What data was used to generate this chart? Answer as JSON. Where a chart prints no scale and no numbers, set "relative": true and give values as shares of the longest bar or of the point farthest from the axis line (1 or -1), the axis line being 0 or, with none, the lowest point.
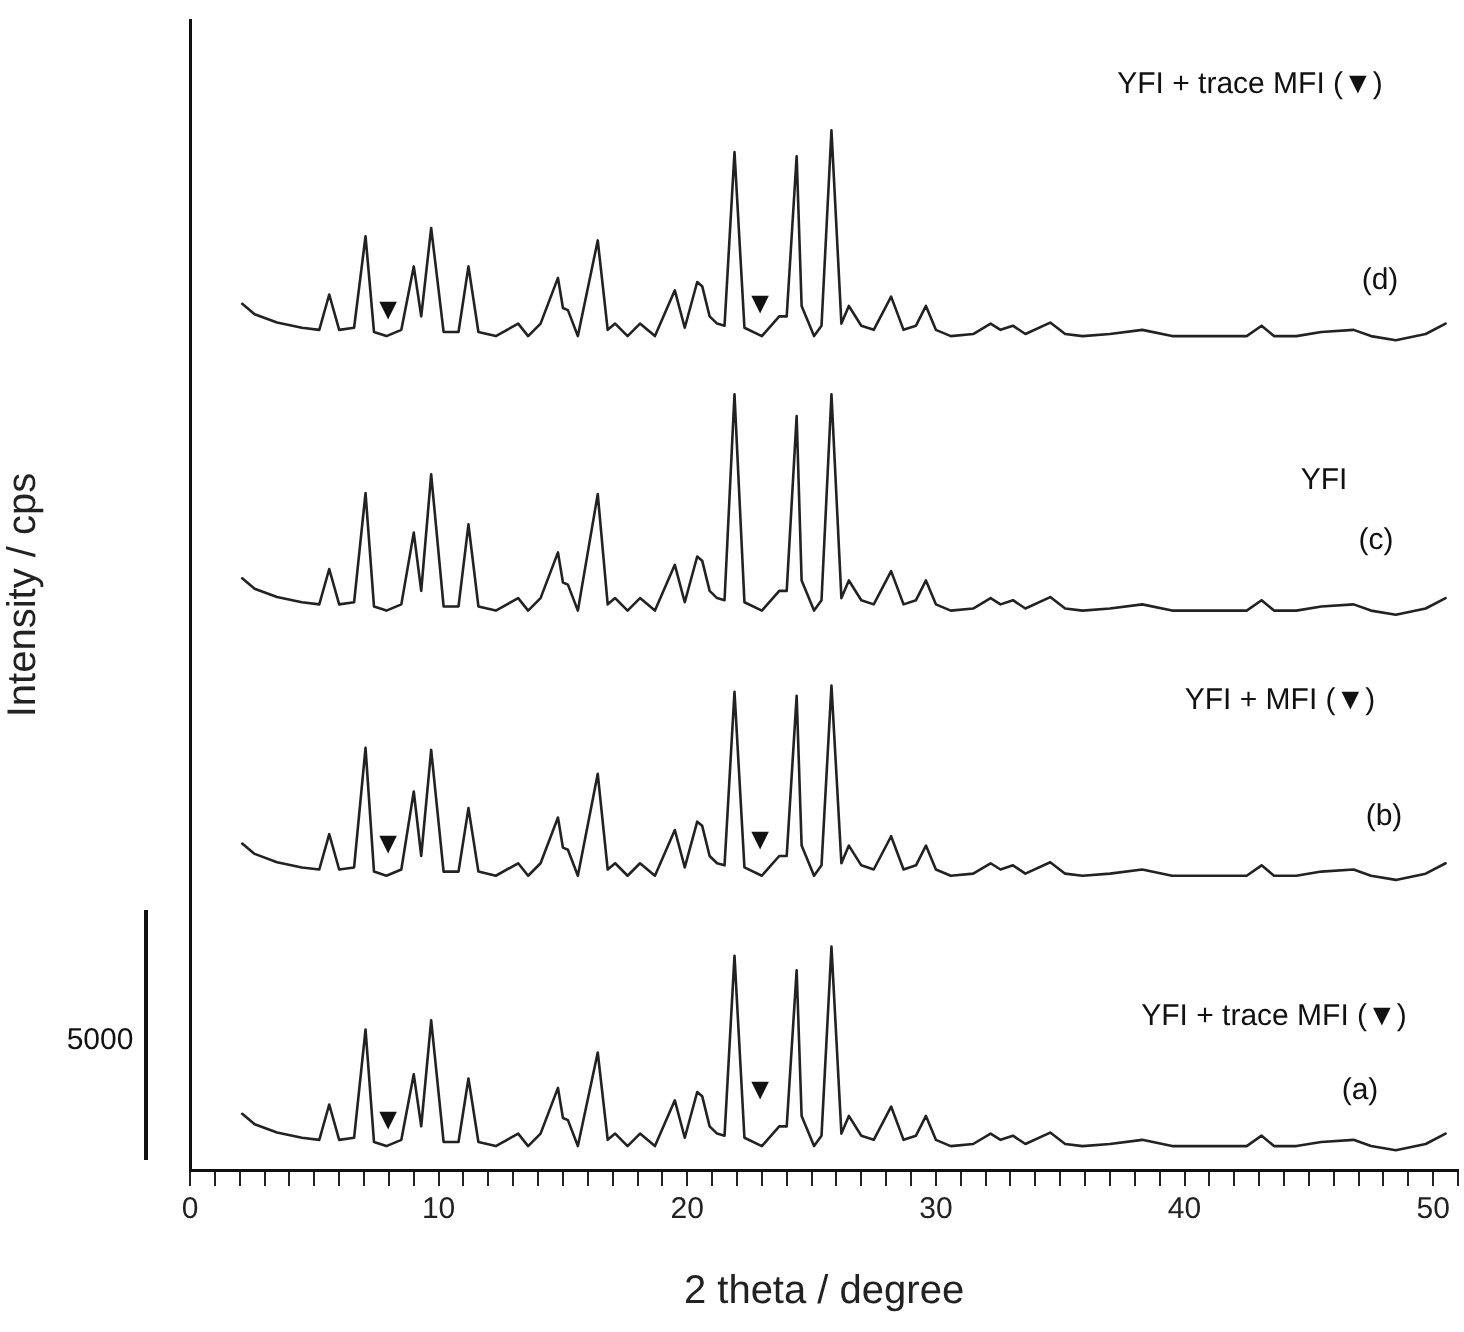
{
  "chart_data": {
    "type": "line",
    "relative": true,
    "xlabel": "2 theta / degree",
    "ylabel": "Intensity / cps",
    "xlim": [
      0,
      51
    ],
    "xticks": [
      0,
      {
        "value": 1,
        "label": null
      },
      {
        "value": 2,
        "label": null
      },
      {
        "value": 3,
        "label": null
      },
      {
        "value": 4,
        "label": null
      },
      {
        "value": 5,
        "label": null
      },
      {
        "value": 6,
        "label": null
      },
      {
        "value": 7,
        "label": null
      },
      {
        "value": 8,
        "label": null
      },
      {
        "value": 9,
        "label": null
      },
      10,
      {
        "value": 11,
        "label": null
      },
      {
        "value": 12,
        "label": null
      },
      {
        "value": 13,
        "label": null
      },
      {
        "value": 14,
        "label": null
      },
      {
        "value": 15,
        "label": null
      },
      {
        "value": 16,
        "label": null
      },
      {
        "value": 17,
        "label": null
      },
      {
        "value": 18,
        "label": null
      },
      {
        "value": 19,
        "label": null
      },
      20,
      {
        "value": 21,
        "label": null
      },
      {
        "value": 22,
        "label": null
      },
      {
        "value": 23,
        "label": null
      },
      {
        "value": 24,
        "label": null
      },
      {
        "value": 25,
        "label": null
      },
      {
        "value": 26,
        "label": null
      },
      {
        "value": 27,
        "label": null
      },
      {
        "value": 28,
        "label": null
      },
      {
        "value": 29,
        "label": null
      },
      30,
      {
        "value": 31,
        "label": null
      },
      {
        "value": 32,
        "label": null
      },
      {
        "value": 33,
        "label": null
      },
      {
        "value": 34,
        "label": null
      },
      {
        "value": 35,
        "label": null
      },
      {
        "value": 36,
        "label": null
      },
      {
        "value": 37,
        "label": null
      },
      {
        "value": 38,
        "label": null
      },
      {
        "value": 39,
        "label": null
      },
      40,
      {
        "value": 41,
        "label": null
      },
      {
        "value": 42,
        "label": null
      },
      {
        "value": 43,
        "label": null
      },
      {
        "value": 44,
        "label": null
      },
      {
        "value": 45,
        "label": null
      },
      {
        "value": 46,
        "label": null
      },
      {
        "value": 47,
        "label": null
      },
      {
        "value": 48,
        "label": null
      },
      {
        "value": 49,
        "label": null
      },
      50,
      {
        "value": 51,
        "label": null
      }
    ],
    "x": [
      2.1,
      2.6,
      3.5,
      4.5,
      5.2,
      5.6,
      6.0,
      6.6,
      7.06,
      7.4,
      7.9,
      8.5,
      9.0,
      9.3,
      9.7,
      10.2,
      10.8,
      11.2,
      11.6,
      12.3,
      13.2,
      13.6,
      14.1,
      14.8,
      15.0,
      15.2,
      15.6,
      16.4,
      16.8,
      17.1,
      17.6,
      18.1,
      18.7,
      19.5,
      19.9,
      20.4,
      20.6,
      20.9,
      21.2,
      21.5,
      21.9,
      22.3,
      23.0,
      23.7,
      24.0,
      24.4,
      24.6,
      25.1,
      25.4,
      25.8,
      26.2,
      26.5,
      27.0,
      27.5,
      28.2,
      28.7,
      29.2,
      29.6,
      30.0,
      30.6,
      31.5,
      32.2,
      32.6,
      33.1,
      33.6,
      34.6,
      35.2,
      35.9,
      37.0,
      38.3,
      39.5,
      41.3,
      42.5,
      43.1,
      43.6,
      44.5,
      45.5,
      46.8,
      47.5,
      48.5,
      49.7,
      50.5
    ],
    "series": [
      {
        "color": "#222222",
        "values": [
          0.054,
          0.044,
          0.036,
          0.031,
          0.029,
          0.063,
          0.029,
          0.031,
          0.135,
          0.027,
          0.023,
          0.029,
          0.092,
          0.042,
          0.144,
          0.027,
          0.027,
          0.088,
          0.027,
          0.023,
          0.035,
          0.023,
          0.035,
          0.079,
          0.05,
          0.048,
          0.023,
          0.113,
          0.029,
          0.035,
          0.023,
          0.035,
          0.023,
          0.067,
          0.031,
          0.075,
          0.071,
          0.042,
          0.035,
          0.033,
          0.206,
          0.031,
          0.023,
          0.042,
          0.042,
          0.192,
          0.052,
          0.023,
          0.033,
          0.215,
          0.035,
          0.052,
          0.033,
          0.029,
          0.061,
          0.029,
          0.033,
          0.052,
          0.029,
          0.023,
          0.025,
          0.035,
          0.029,
          0.033,
          0.025,
          0.036,
          0.025,
          0.023,
          0.025,
          0.029,
          0.023,
          0.023,
          0.023,
          0.033,
          0.023,
          0.023,
          0.027,
          0.029,
          0.023,
          0.019,
          0.025,
          0.035
        ]
      },
      {
        "color": "#222222",
        "values": [
          0.314,
          0.304,
          0.296,
          0.291,
          0.289,
          0.323,
          0.289,
          0.291,
          0.406,
          0.287,
          0.283,
          0.289,
          0.364,
          0.302,
          0.404,
          0.287,
          0.287,
          0.348,
          0.287,
          0.283,
          0.295,
          0.283,
          0.295,
          0.339,
          0.31,
          0.308,
          0.283,
          0.381,
          0.289,
          0.295,
          0.283,
          0.295,
          0.283,
          0.327,
          0.291,
          0.335,
          0.331,
          0.302,
          0.295,
          0.293,
          0.46,
          0.291,
          0.283,
          0.302,
          0.302,
          0.456,
          0.312,
          0.283,
          0.293,
          0.466,
          0.295,
          0.312,
          0.293,
          0.289,
          0.321,
          0.289,
          0.293,
          0.312,
          0.289,
          0.283,
          0.285,
          0.295,
          0.289,
          0.293,
          0.285,
          0.296,
          0.285,
          0.283,
          0.285,
          0.289,
          0.283,
          0.283,
          0.283,
          0.293,
          0.283,
          0.283,
          0.287,
          0.289,
          0.283,
          0.279,
          0.285,
          0.295
        ]
      },
      {
        "color": "#222222",
        "values": [
          0.569,
          0.559,
          0.551,
          0.546,
          0.544,
          0.578,
          0.544,
          0.546,
          0.651,
          0.542,
          0.538,
          0.544,
          0.613,
          0.557,
          0.669,
          0.542,
          0.542,
          0.621,
          0.542,
          0.538,
          0.55,
          0.538,
          0.55,
          0.594,
          0.565,
          0.563,
          0.538,
          0.65,
          0.544,
          0.55,
          0.538,
          0.55,
          0.538,
          0.582,
          0.546,
          0.59,
          0.586,
          0.557,
          0.55,
          0.548,
          0.746,
          0.546,
          0.538,
          0.557,
          0.557,
          0.725,
          0.567,
          0.538,
          0.548,
          0.746,
          0.55,
          0.567,
          0.548,
          0.544,
          0.576,
          0.544,
          0.548,
          0.567,
          0.544,
          0.538,
          0.54,
          0.55,
          0.544,
          0.548,
          0.54,
          0.551,
          0.54,
          0.538,
          0.54,
          0.544,
          0.538,
          0.538,
          0.538,
          0.548,
          0.538,
          0.538,
          0.542,
          0.544,
          0.538,
          0.534,
          0.54,
          0.55
        ]
      },
      {
        "color": "#222222",
        "values": [
          0.833,
          0.823,
          0.815,
          0.81,
          0.808,
          0.842,
          0.808,
          0.81,
          0.898,
          0.806,
          0.802,
          0.808,
          0.869,
          0.821,
          0.906,
          0.806,
          0.806,
          0.869,
          0.806,
          0.802,
          0.814,
          0.802,
          0.814,
          0.858,
          0.829,
          0.827,
          0.802,
          0.894,
          0.808,
          0.814,
          0.802,
          0.814,
          0.802,
          0.846,
          0.81,
          0.854,
          0.85,
          0.821,
          0.814,
          0.812,
          0.979,
          0.81,
          0.802,
          0.821,
          0.821,
          0.975,
          0.831,
          0.802,
          0.812,
          1.0,
          0.814,
          0.831,
          0.812,
          0.808,
          0.84,
          0.808,
          0.812,
          0.831,
          0.808,
          0.802,
          0.804,
          0.814,
          0.808,
          0.812,
          0.804,
          0.815,
          0.804,
          0.802,
          0.804,
          0.808,
          0.802,
          0.802,
          0.802,
          0.812,
          0.802,
          0.802,
          0.806,
          0.808,
          0.802,
          0.798,
          0.804,
          0.814
        ]
      }
    ],
    "annotations": [
      "YFI + trace MFI (▼)",
      "(a)",
      "YFI + MFI (▼)",
      "(b)",
      "YFI",
      "(c)",
      "YFI + trace MFI (▼)",
      "(d)",
      "5000",
      "▼",
      "▼",
      "▼",
      "▼",
      "▼",
      "▼"
    ],
    "grid": false,
    "legend": false,
    "marker": "none",
    "line_style": "solid"
  }
}
